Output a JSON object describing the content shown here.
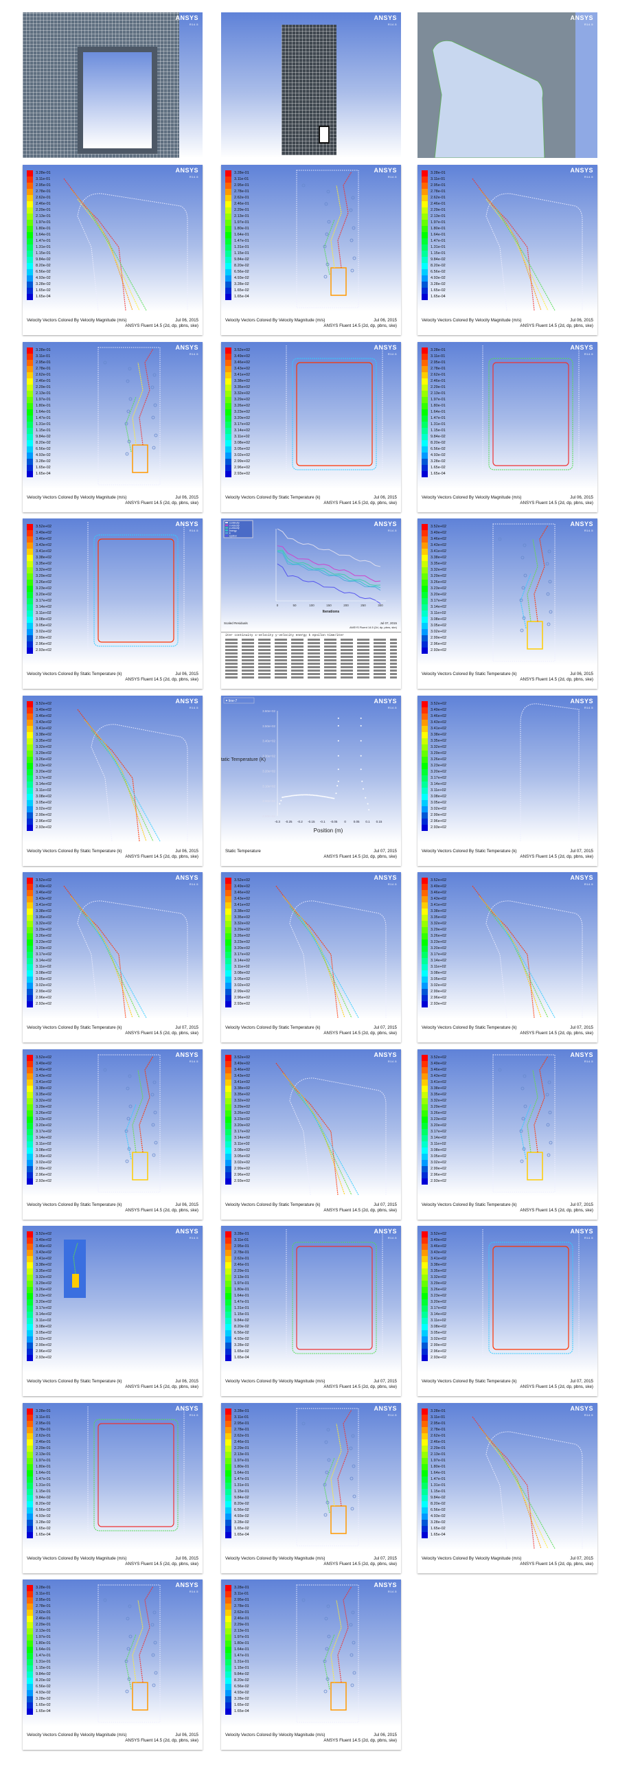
{
  "logo": "ANSYS",
  "logo_version": "R14.5",
  "software": "ANSYS Fluent 14.5 (2d, dp, pbns, ske)",
  "legends": {
    "velocity": [
      "3.28e-01",
      "3.11e-01",
      "2.95e-01",
      "2.78e-01",
      "2.62e-01",
      "2.46e-01",
      "2.29e-01",
      "2.13e-01",
      "1.97e-01",
      "1.80e-01",
      "1.64e-01",
      "1.47e-01",
      "1.31e-01",
      "1.15e-01",
      "9.84e-02",
      "8.20e-02",
      "6.56e-02",
      "4.93e-02",
      "3.28e-02",
      "1.65e-02",
      "1.65e-04"
    ],
    "temperature": [
      "3.52e+02",
      "3.49e+02",
      "3.46e+02",
      "3.43e+02",
      "3.41e+02",
      "3.38e+02",
      "3.35e+02",
      "3.32e+02",
      "3.29e+02",
      "3.26e+02",
      "3.23e+02",
      "3.20e+02",
      "3.17e+02",
      "3.14e+02",
      "3.11e+02",
      "3.08e+02",
      "3.05e+02",
      "3.02e+02",
      "2.99e+02",
      "2.96e+02",
      "2.93e+02"
    ]
  },
  "mesh_panels": [
    {
      "kind": "mesh-room"
    },
    {
      "kind": "mesh-tall"
    },
    {
      "kind": "geometry"
    }
  ],
  "panels": [
    {
      "type": "vel",
      "shape": "duct",
      "caption": "Velocity Vectors Colored By Velocity Magnitude (m/s)",
      "date": "Jul 06, 2015"
    },
    {
      "type": "vel",
      "shape": "tall",
      "caption": "Velocity Vectors Colored By Velocity Magnitude (m/s)",
      "date": "Jul 06, 2015"
    },
    {
      "type": "vel",
      "shape": "duct2",
      "caption": "Velocity Vectors Colored By Velocity Magnitude (m/s)",
      "date": "Jul 06, 2015"
    },
    {
      "type": "vel",
      "shape": "tall",
      "caption": "Velocity Vectors Colored By Velocity Magnitude (m/s)",
      "date": "Jul 06, 2015"
    },
    {
      "type": "temp",
      "shape": "room",
      "caption": "Velocity Vectors Colored By Static Temperature (k)",
      "date": "Jul 06, 2015"
    },
    {
      "type": "vel",
      "shape": "room",
      "caption": "Velocity Vectors Colored By Velocity Magnitude (m/s)",
      "date": "Jul 06, 2015"
    },
    {
      "type": "temp",
      "shape": "room",
      "caption": "Velocity Vectors Colored By Static Temperature (k)",
      "date": "Jul 06, 2015"
    },
    {
      "type": "residuals",
      "caption": "Scaled Residuals",
      "date": "Jul 07, 2015",
      "legend": [
        "continuity",
        "x-velocity",
        "y-velocity",
        "energy",
        "k",
        "epsilon"
      ],
      "xticks": [
        "0",
        "50",
        "100",
        "150",
        "200",
        "250",
        "300"
      ],
      "xlabel": "Iterations",
      "console_header": "iter  continuity  x-velocity  y-velocity  energy  k  epsilon  time/iter"
    },
    {
      "type": "temp",
      "shape": "tall",
      "caption": "Velocity Vectors Colored By Static Temperature (k)",
      "date": "Jul 06, 2015"
    },
    {
      "type": "temp",
      "shape": "duct2",
      "caption": "Velocity Vectors Colored By Static Temperature (k)",
      "date": "Jul 06, 2015"
    },
    {
      "type": "xy",
      "caption": "Static Temperature",
      "date": "Jul 07, 2015",
      "series": "line-7",
      "ylabel": "Static Temperature (K)",
      "xlabel": "Position (m)",
      "yticks": [
        "3.60e+02",
        "3.50e+02",
        "3.40e+02",
        "3.30e+02",
        "3.20e+02",
        "3.10e+02",
        "3.00e+02",
        "2.90e+02"
      ],
      "xticks": [
        "-0.3",
        "-0.25",
        "-0.2",
        "-0.15",
        "-0.1",
        "-0.05",
        "0",
        "0.05",
        "0.1",
        "0.15"
      ]
    },
    {
      "type": "temp",
      "shape": "empty",
      "caption": "Velocity Vectors Colored By Static Temperature (k)",
      "date": "Jul 07, 2015"
    },
    {
      "type": "temp",
      "shape": "duct",
      "caption": "Velocity Vectors Colored By Static Temperature (k)",
      "date": "Jul 07, 2015"
    },
    {
      "type": "temp",
      "shape": "duct2",
      "caption": "Velocity Vectors Colored By Static Temperature (k)",
      "date": "Jul 07, 2015"
    },
    {
      "type": "temp",
      "shape": "duct2",
      "caption": "Velocity Vectors Colored By Static Temperature (k)",
      "date": "Jul 07, 2015"
    },
    {
      "type": "temp",
      "shape": "tall",
      "caption": "Velocity Vectors Colored By Static Temperature (k)",
      "date": "Jul 06, 2015"
    },
    {
      "type": "temp",
      "shape": "duct2",
      "caption": "Velocity Vectors Colored By Static Temperature (k)",
      "date": "Jul 07, 2015"
    },
    {
      "type": "temp",
      "shape": "tall",
      "caption": "Velocity Vectors Colored By Static Temperature (k)",
      "date": "Jul 07, 2015"
    },
    {
      "type": "temp",
      "shape": "small",
      "caption": "Velocity Vectors Colored By Static Temperature (k)",
      "date": "Jul 06, 2015"
    },
    {
      "type": "vel",
      "shape": "room",
      "caption": "Velocity Vectors Colored By Velocity Magnitude (m/s)",
      "date": "Jul 07, 2015"
    },
    {
      "type": "temp",
      "shape": "room",
      "caption": "Velocity Vectors Colored By Static Temperature (k)",
      "date": "Jul 07, 2015"
    },
    {
      "type": "vel",
      "shape": "room",
      "caption": "Velocity Vectors Colored By Velocity Magnitude (m/s)",
      "date": "Jul 06, 2015"
    },
    {
      "type": "vel",
      "shape": "tall",
      "caption": "Velocity Vectors Colored By Velocity Magnitude (m/s)",
      "date": "Jul 07, 2015"
    },
    {
      "type": "vel",
      "shape": "duct2",
      "caption": "Velocity Vectors Colored By Velocity Magnitude (m/s)",
      "date": "Jul 07, 2015"
    },
    {
      "type": "vel",
      "shape": "tall",
      "caption": "Velocity Vectors Colored By Velocity Magnitude (m/s)",
      "date": "Jul 06, 2015"
    },
    {
      "type": "vel",
      "shape": "tall",
      "caption": "Velocity Vectors Colored By Velocity Magnitude (m/s)",
      "date": "Jul 06, 2015"
    }
  ]
}
